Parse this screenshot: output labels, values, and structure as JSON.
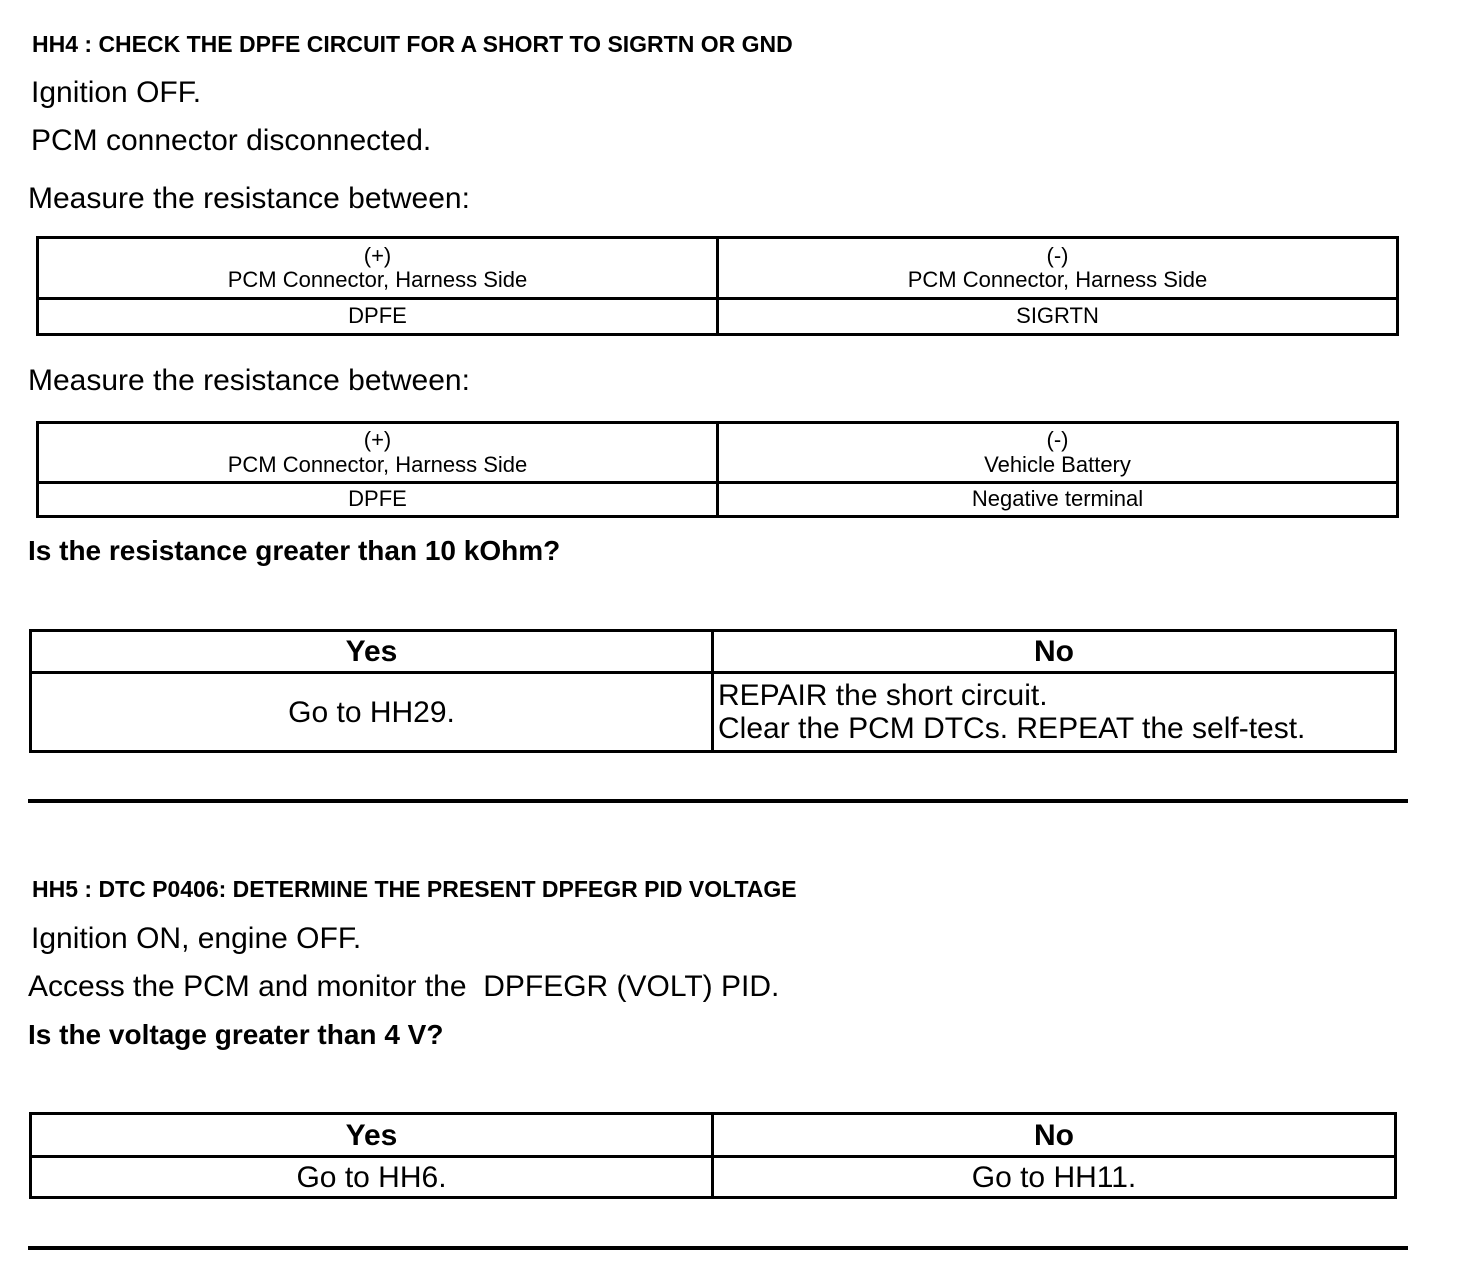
{
  "hh4": {
    "heading": "HH4 : CHECK THE DPFE CIRCUIT FOR A SHORT TO SIGRTN OR GND",
    "lines": [
      "Ignition OFF.",
      "PCM connector disconnected."
    ],
    "measure1": "Measure the resistance between:",
    "table1": {
      "plus_sign": "(+)",
      "plus_label": "PCM Connector, Harness Side",
      "plus_value": "DPFE",
      "minus_sign": "(-)",
      "minus_label": "PCM Connector, Harness Side",
      "minus_value": "SIGRTN"
    },
    "measure2": "Measure the resistance between:",
    "table2": {
      "plus_sign": "(+)",
      "plus_label": "PCM Connector, Harness Side",
      "plus_value": "DPFE",
      "minus_sign": "(-)",
      "minus_label": "Vehicle Battery",
      "minus_value": "Negative terminal"
    },
    "question": "Is the resistance greater than 10 kOhm?",
    "answers": {
      "yes": "Yes",
      "no": "No",
      "yes_action": "Go to HH29.",
      "no_action_1": "REPAIR the short circuit.",
      "no_action_2": "Clear the PCM DTCs. REPEAT the self-test."
    }
  },
  "hh5": {
    "heading": "HH5 : DTC P0406: DETERMINE THE PRESENT DPFEGR PID VOLTAGE",
    "lines": [
      "Ignition ON, engine OFF.",
      "Access the PCM and monitor the  DPFEGR (VOLT) PID."
    ],
    "question": "Is the voltage greater than 4 V?",
    "answers": {
      "yes": "Yes",
      "no": "No",
      "yes_action": "Go to HH6.",
      "no_action": "Go to HH11."
    }
  }
}
